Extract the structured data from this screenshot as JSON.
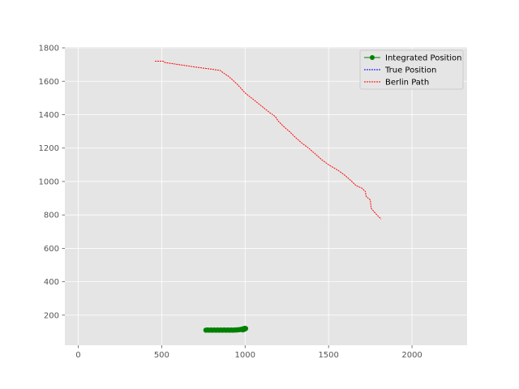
{
  "chart_data": {
    "type": "line",
    "title": "",
    "xlabel": "",
    "ylabel": "",
    "xlim": [
      -80,
      2330
    ],
    "ylim": [
      20,
      1805
    ],
    "xticks": [
      0,
      500,
      1000,
      1500,
      2000
    ],
    "yticks": [
      200,
      400,
      600,
      800,
      1000,
      1200,
      1400,
      1600,
      1800
    ],
    "grid": true,
    "background": "#e5e5e5",
    "legend_position": "top-right",
    "series": [
      {
        "name": "Integrated Position",
        "color": "#008000",
        "style": "solid-with-circle-markers",
        "points": [
          [
            765,
            110
          ],
          [
            775,
            111
          ],
          [
            785,
            110
          ],
          [
            795,
            111
          ],
          [
            805,
            110
          ],
          [
            815,
            111
          ],
          [
            825,
            110
          ],
          [
            835,
            111
          ],
          [
            845,
            110
          ],
          [
            855,
            111
          ],
          [
            865,
            110
          ],
          [
            875,
            111
          ],
          [
            885,
            110
          ],
          [
            895,
            111
          ],
          [
            905,
            110
          ],
          [
            915,
            111
          ],
          [
            925,
            110
          ],
          [
            935,
            111
          ],
          [
            945,
            111
          ],
          [
            955,
            112
          ],
          [
            965,
            113
          ],
          [
            975,
            115
          ],
          [
            985,
            117
          ],
          [
            992,
            119
          ],
          [
            998,
            121
          ],
          [
            1003,
            120
          ],
          [
            995,
            115
          ],
          [
            985,
            112
          ]
        ]
      },
      {
        "name": "True Position",
        "color": "#0000ff",
        "style": "dashed",
        "points": []
      },
      {
        "name": "Berlin Path",
        "color": "#ff0000",
        "style": "dashed",
        "points": [
          [
            460,
            1720
          ],
          [
            510,
            1720
          ],
          [
            520,
            1712
          ],
          [
            600,
            1700
          ],
          [
            700,
            1685
          ],
          [
            800,
            1672
          ],
          [
            850,
            1665
          ],
          [
            870,
            1650
          ],
          [
            900,
            1630
          ],
          [
            950,
            1585
          ],
          [
            1000,
            1530
          ],
          [
            1050,
            1490
          ],
          [
            1100,
            1450
          ],
          [
            1150,
            1410
          ],
          [
            1180,
            1390
          ],
          [
            1200,
            1360
          ],
          [
            1230,
            1330
          ],
          [
            1270,
            1295
          ],
          [
            1300,
            1265
          ],
          [
            1340,
            1230
          ],
          [
            1380,
            1200
          ],
          [
            1420,
            1165
          ],
          [
            1460,
            1130
          ],
          [
            1500,
            1100
          ],
          [
            1560,
            1065
          ],
          [
            1600,
            1035
          ],
          [
            1640,
            1000
          ],
          [
            1665,
            975
          ],
          [
            1700,
            960
          ],
          [
            1720,
            940
          ],
          [
            1725,
            910
          ],
          [
            1750,
            890
          ],
          [
            1755,
            840
          ],
          [
            1780,
            810
          ],
          [
            1800,
            790
          ],
          [
            1815,
            775
          ]
        ]
      }
    ]
  }
}
